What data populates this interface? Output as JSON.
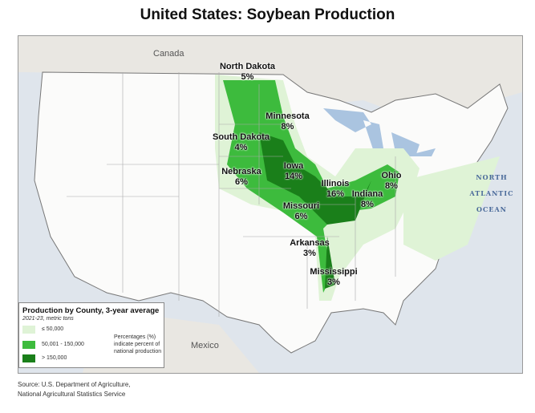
{
  "title": "United States: Soybean Production",
  "countries": {
    "canada": "Canada",
    "mexico": "Mexico"
  },
  "ocean": [
    "NORTH",
    "ATLANTIC",
    "OCEAN"
  ],
  "states": [
    {
      "name": "North Dakota",
      "pct": "5%"
    },
    {
      "name": "Minnesota",
      "pct": "8%"
    },
    {
      "name": "South Dakota",
      "pct": "4%"
    },
    {
      "name": "Nebraska",
      "pct": "6%"
    },
    {
      "name": "Iowa",
      "pct": "14%"
    },
    {
      "name": "Illinois",
      "pct": "16%"
    },
    {
      "name": "Ohio",
      "pct": "8%"
    },
    {
      "name": "Indiana",
      "pct": "8%"
    },
    {
      "name": "Missouri",
      "pct": "6%"
    },
    {
      "name": "Arkansas",
      "pct": "3%"
    },
    {
      "name": "Mississippi",
      "pct": "3%"
    }
  ],
  "legend": {
    "title": "Production by County, 3-year average",
    "subtitle": "2021-23, metric tons",
    "classes": [
      {
        "label": "≤ 50,000",
        "color": "#dff3d6"
      },
      {
        "label": "50,001 - 150,000",
        "color": "#3dbb3d"
      },
      {
        "label": "> 150,000",
        "color": "#1a7f1a"
      }
    ],
    "note": "Percentages (%) indicate percent of national production"
  },
  "source": [
    "Source: U.S. Department of Agriculture,",
    "National Agricultural Statistics Service"
  ]
}
